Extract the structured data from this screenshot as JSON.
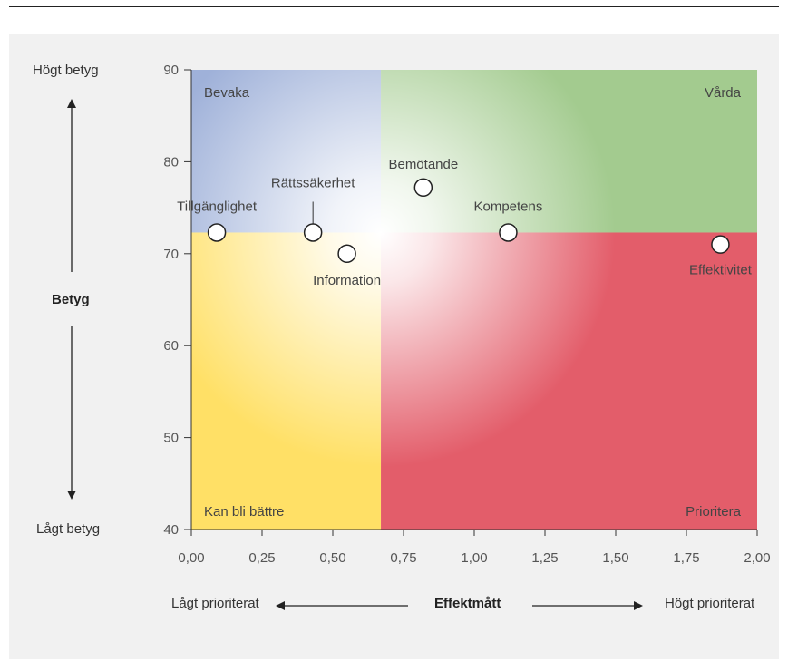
{
  "chart_data": {
    "type": "scatter",
    "xlabel": "Effektmått",
    "ylabel": "Betyg",
    "xlim": [
      0,
      2
    ],
    "ylim": [
      40,
      90
    ],
    "x_ticks": [
      "0,00",
      "0,25",
      "0,50",
      "0,75",
      "1,00",
      "1,25",
      "1,50",
      "1,75",
      "2,00"
    ],
    "y_ticks": [
      "40",
      "50",
      "60",
      "70",
      "80",
      "90"
    ],
    "x_threshold": 0.67,
    "y_threshold": 72.3,
    "y_axis_top_label": "Högt betyg",
    "y_axis_bottom_label": "Lågt betyg",
    "x_axis_left_label": "Lågt prioriterat",
    "x_axis_right_label": "Högt prioriterat",
    "quadrants": {
      "top_left": {
        "label": "Bevaka",
        "color": "#9fb1d9"
      },
      "top_right": {
        "label": "Vårda",
        "color": "#a3cb8f"
      },
      "bottom_left": {
        "label": "Kan bli bättre",
        "color": "#ffe066"
      },
      "bottom_right": {
        "label": "Prioritera",
        "color": "#e35d6a"
      }
    },
    "points": [
      {
        "label": "Tillgänglighet",
        "x": 0.09,
        "y": 72.3
      },
      {
        "label": "Rättssäkerhet",
        "x": 0.43,
        "y": 72.3
      },
      {
        "label": "Information",
        "x": 0.55,
        "y": 70.0
      },
      {
        "label": "Bemötande",
        "x": 0.82,
        "y": 77.2
      },
      {
        "label": "Kompetens",
        "x": 1.12,
        "y": 72.3
      },
      {
        "label": "Effektivitet",
        "x": 1.87,
        "y": 71.0
      }
    ]
  }
}
